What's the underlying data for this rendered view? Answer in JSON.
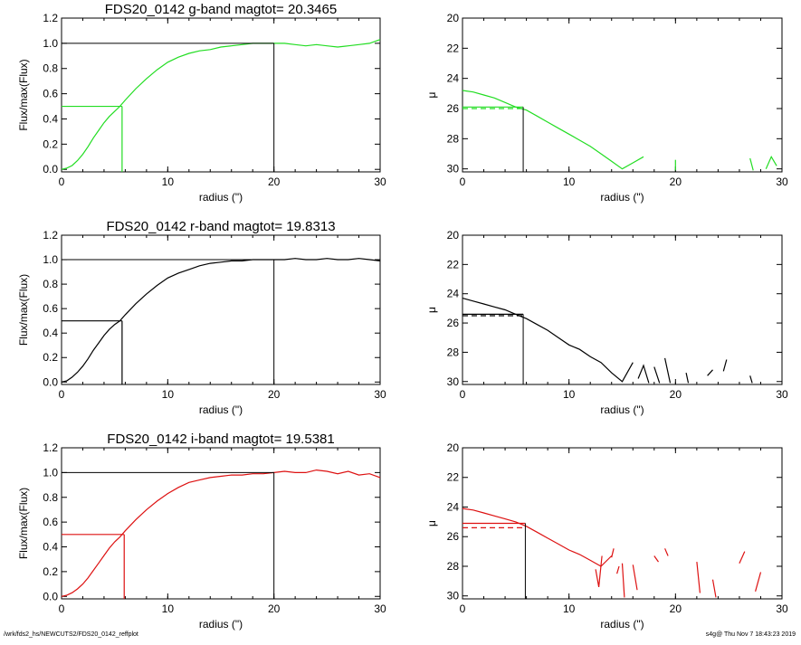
{
  "footer": {
    "left": "/wrk/fds2_hs/NEWCUTS2/FDS20_0142_reffplot",
    "right": "s4g@  Thu Nov  7 18:43:23 2019"
  },
  "colors": {
    "g": "#22dd22",
    "r": "#000000",
    "i": "#dd1111",
    "frame": "#000000"
  },
  "chart_data": [
    {
      "type": "line",
      "id": "g-growth",
      "title": "FDS20_0142 g-band  magtot=      20.3465",
      "xlabel": "radius (\")",
      "ylabel": "Flux/max(Flux)",
      "xlim": [
        0,
        30
      ],
      "ylim": [
        -0.02,
        1.2
      ],
      "xticks": [
        0,
        10,
        20,
        30
      ],
      "yticks": [
        0.0,
        0.2,
        0.4,
        0.6,
        0.8,
        1.0,
        1.2
      ],
      "ytick_labels": [
        "0.0",
        "0.2",
        "0.4",
        "0.6",
        "0.8",
        "1.0",
        "1.2"
      ],
      "color": "g",
      "x": [
        0,
        0.5,
        1,
        1.5,
        2,
        2.5,
        3,
        3.5,
        4,
        4.5,
        5,
        5.5,
        6,
        7,
        8,
        9,
        10,
        11,
        12,
        13,
        14,
        15,
        16,
        17,
        18,
        19,
        20,
        21,
        22,
        23,
        24,
        25,
        26,
        27,
        28,
        29,
        30
      ],
      "y": [
        0,
        0.01,
        0.03,
        0.07,
        0.12,
        0.18,
        0.25,
        0.31,
        0.37,
        0.42,
        0.46,
        0.5,
        0.55,
        0.64,
        0.72,
        0.79,
        0.85,
        0.89,
        0.92,
        0.94,
        0.95,
        0.97,
        0.98,
        0.99,
        1.0,
        1.0,
        1.0,
        1.0,
        0.99,
        0.98,
        0.99,
        0.98,
        0.97,
        0.98,
        0.99,
        1.0,
        1.03
      ],
      "half_radius": 5.7,
      "half_level": 0.5,
      "total_radius": 20,
      "total_level": 1.0
    },
    {
      "type": "line",
      "id": "g-profile",
      "xlabel": "radius (\")",
      "ylabel": "μ",
      "xlim": [
        0,
        30
      ],
      "ylim": [
        30.2,
        20
      ],
      "inverted_y": true,
      "xticks": [
        0,
        10,
        20,
        30
      ],
      "yticks": [
        20,
        22,
        24,
        26,
        28,
        30
      ],
      "color": "g",
      "x": [
        0,
        1,
        2,
        3,
        4,
        5,
        6,
        7,
        8,
        9,
        10,
        11,
        12,
        13,
        14,
        15,
        16,
        17
      ],
      "y": [
        24.8,
        24.9,
        25.1,
        25.3,
        25.6,
        25.9,
        26.1,
        26.5,
        26.9,
        27.3,
        27.7,
        28.1,
        28.5,
        29.0,
        29.5,
        30.0,
        29.6,
        29.2
      ],
      "fragments": [
        [
          [
            20,
            29.4
          ],
          [
            20,
            30.1
          ]
        ],
        [
          [
            27,
            29.3
          ],
          [
            27.3,
            30.1
          ]
        ],
        [
          [
            28.5,
            30
          ],
          [
            29,
            29.2
          ],
          [
            29.5,
            29.8
          ]
        ]
      ],
      "solid_level": 25.9,
      "dashed_level": 26.0,
      "half_radius": 5.7
    },
    {
      "type": "line",
      "id": "r-growth",
      "title": "FDS20_0142 r-band  magtot=      19.8313",
      "xlabel": "radius (\")",
      "ylabel": "Flux/max(Flux)",
      "xlim": [
        0,
        30
      ],
      "ylim": [
        -0.02,
        1.2
      ],
      "xticks": [
        0,
        10,
        20,
        30
      ],
      "yticks": [
        0.0,
        0.2,
        0.4,
        0.6,
        0.8,
        1.0,
        1.2
      ],
      "ytick_labels": [
        "0.0",
        "0.2",
        "0.4",
        "0.6",
        "0.8",
        "1.0",
        "1.2"
      ],
      "color": "r",
      "x": [
        0,
        0.5,
        1,
        1.5,
        2,
        2.5,
        3,
        3.5,
        4,
        4.5,
        5,
        5.5,
        6,
        7,
        8,
        9,
        10,
        11,
        12,
        13,
        14,
        15,
        16,
        17,
        18,
        19,
        20,
        21,
        22,
        23,
        24,
        25,
        26,
        27,
        28,
        29,
        30
      ],
      "y": [
        0,
        0.01,
        0.04,
        0.08,
        0.13,
        0.19,
        0.26,
        0.32,
        0.38,
        0.43,
        0.47,
        0.5,
        0.55,
        0.64,
        0.72,
        0.79,
        0.85,
        0.89,
        0.92,
        0.95,
        0.97,
        0.98,
        0.99,
        0.99,
        1.0,
        1.0,
        1.0,
        1.0,
        1.01,
        1.0,
        1.0,
        1.01,
        1.0,
        1.0,
        1.01,
        1.0,
        0.99
      ],
      "half_radius": 5.7,
      "half_level": 0.5,
      "total_radius": 20,
      "total_level": 1.0
    },
    {
      "type": "line",
      "id": "r-profile",
      "xlabel": "radius (\")",
      "ylabel": "μ",
      "xlim": [
        0,
        30
      ],
      "ylim": [
        30.2,
        20
      ],
      "inverted_y": true,
      "xticks": [
        0,
        10,
        20,
        30
      ],
      "yticks": [
        20,
        22,
        24,
        26,
        28,
        30
      ],
      "color": "r",
      "x": [
        0,
        1,
        2,
        3,
        4,
        5,
        6,
        7,
        8,
        9,
        10,
        11,
        12,
        13,
        14,
        15,
        16
      ],
      "y": [
        24.3,
        24.5,
        24.7,
        24.9,
        25.1,
        25.4,
        25.7,
        26.1,
        26.5,
        27.0,
        27.5,
        27.8,
        28.3,
        28.7,
        29.4,
        30.0,
        28.7
      ],
      "fragments": [
        [
          [
            16.5,
            29.8
          ],
          [
            17,
            28.9
          ],
          [
            17.5,
            30.1
          ]
        ],
        [
          [
            18,
            29.0
          ],
          [
            18.5,
            30.1
          ]
        ],
        [
          [
            19,
            28.4
          ],
          [
            19.5,
            30.1
          ]
        ],
        [
          [
            21,
            29.4
          ],
          [
            21.2,
            30.1
          ]
        ],
        [
          [
            23,
            29.6
          ],
          [
            23.5,
            29.2
          ]
        ],
        [
          [
            24.5,
            29.3
          ],
          [
            24.8,
            28.5
          ]
        ],
        [
          [
            27,
            29.6
          ],
          [
            27.2,
            30.1
          ]
        ]
      ],
      "solid_level": 25.4,
      "dashed_level": 25.5,
      "half_radius": 5.7
    },
    {
      "type": "line",
      "id": "i-growth",
      "title": "FDS20_0142 i-band  magtot=      19.5381",
      "xlabel": "radius (\")",
      "ylabel": "Flux/max(Flux)",
      "xlim": [
        0,
        30
      ],
      "ylim": [
        -0.02,
        1.2
      ],
      "xticks": [
        0,
        10,
        20,
        30
      ],
      "yticks": [
        0.0,
        0.2,
        0.4,
        0.6,
        0.8,
        1.0,
        1.2
      ],
      "ytick_labels": [
        "0.0",
        "0.2",
        "0.4",
        "0.6",
        "0.8",
        "1.0",
        "1.2"
      ],
      "color": "i",
      "x": [
        0,
        0.5,
        1,
        1.5,
        2,
        2.5,
        3,
        3.5,
        4,
        4.5,
        5,
        5.5,
        6,
        7,
        8,
        9,
        10,
        11,
        12,
        13,
        14,
        15,
        16,
        17,
        18,
        19,
        20,
        21,
        22,
        23,
        24,
        25,
        26,
        27,
        28,
        29,
        30
      ],
      "y": [
        0,
        0.01,
        0.03,
        0.06,
        0.1,
        0.15,
        0.21,
        0.27,
        0.33,
        0.39,
        0.44,
        0.48,
        0.53,
        0.62,
        0.7,
        0.77,
        0.83,
        0.88,
        0.92,
        0.94,
        0.96,
        0.97,
        0.98,
        0.98,
        0.99,
        0.99,
        1.0,
        1.01,
        1.0,
        1.0,
        1.02,
        1.01,
        0.99,
        1.01,
        0.98,
        0.99,
        0.96
      ],
      "half_radius": 5.9,
      "half_level": 0.5,
      "total_radius": 20,
      "total_level": 1.0
    },
    {
      "type": "line",
      "id": "i-profile",
      "xlabel": "radius (\")",
      "ylabel": "μ",
      "xlim": [
        0,
        30
      ],
      "ylim": [
        30.2,
        20
      ],
      "inverted_y": true,
      "xticks": [
        0,
        10,
        20,
        30
      ],
      "yticks": [
        20,
        22,
        24,
        26,
        28,
        30
      ],
      "color": "i",
      "x": [
        0,
        1,
        2,
        3,
        4,
        5,
        6,
        7,
        8,
        9,
        10,
        11,
        12,
        13,
        14
      ],
      "y": [
        24.1,
        24.2,
        24.4,
        24.6,
        24.8,
        25.0,
        25.3,
        25.7,
        26.1,
        26.5,
        26.9,
        27.2,
        27.6,
        28.0,
        27.3
      ],
      "fragments": [
        [
          [
            12.5,
            28.2
          ],
          [
            12.8,
            29.4
          ],
          [
            13.1,
            27.3
          ]
        ],
        [
          [
            14,
            27.4
          ],
          [
            14.2,
            26.8
          ]
        ],
        [
          [
            14.5,
            28.5
          ],
          [
            14.7,
            28.0
          ]
        ],
        [
          [
            15,
            27.8
          ],
          [
            15.2,
            30.1
          ]
        ],
        [
          [
            16,
            27.9
          ],
          [
            16.4,
            29.6
          ]
        ],
        [
          [
            18,
            27.3
          ],
          [
            18.4,
            27.7
          ]
        ],
        [
          [
            19,
            26.8
          ],
          [
            19.3,
            27.3
          ]
        ],
        [
          [
            22,
            27.7
          ],
          [
            22.3,
            29.8
          ]
        ],
        [
          [
            23.5,
            28.9
          ],
          [
            23.8,
            30.1
          ]
        ],
        [
          [
            26,
            27.8
          ],
          [
            26.5,
            27.0
          ]
        ],
        [
          [
            27.5,
            29.7
          ],
          [
            28,
            28.4
          ]
        ]
      ],
      "solid_level": 25.1,
      "dashed_level": 25.4,
      "half_radius": 5.9
    }
  ]
}
